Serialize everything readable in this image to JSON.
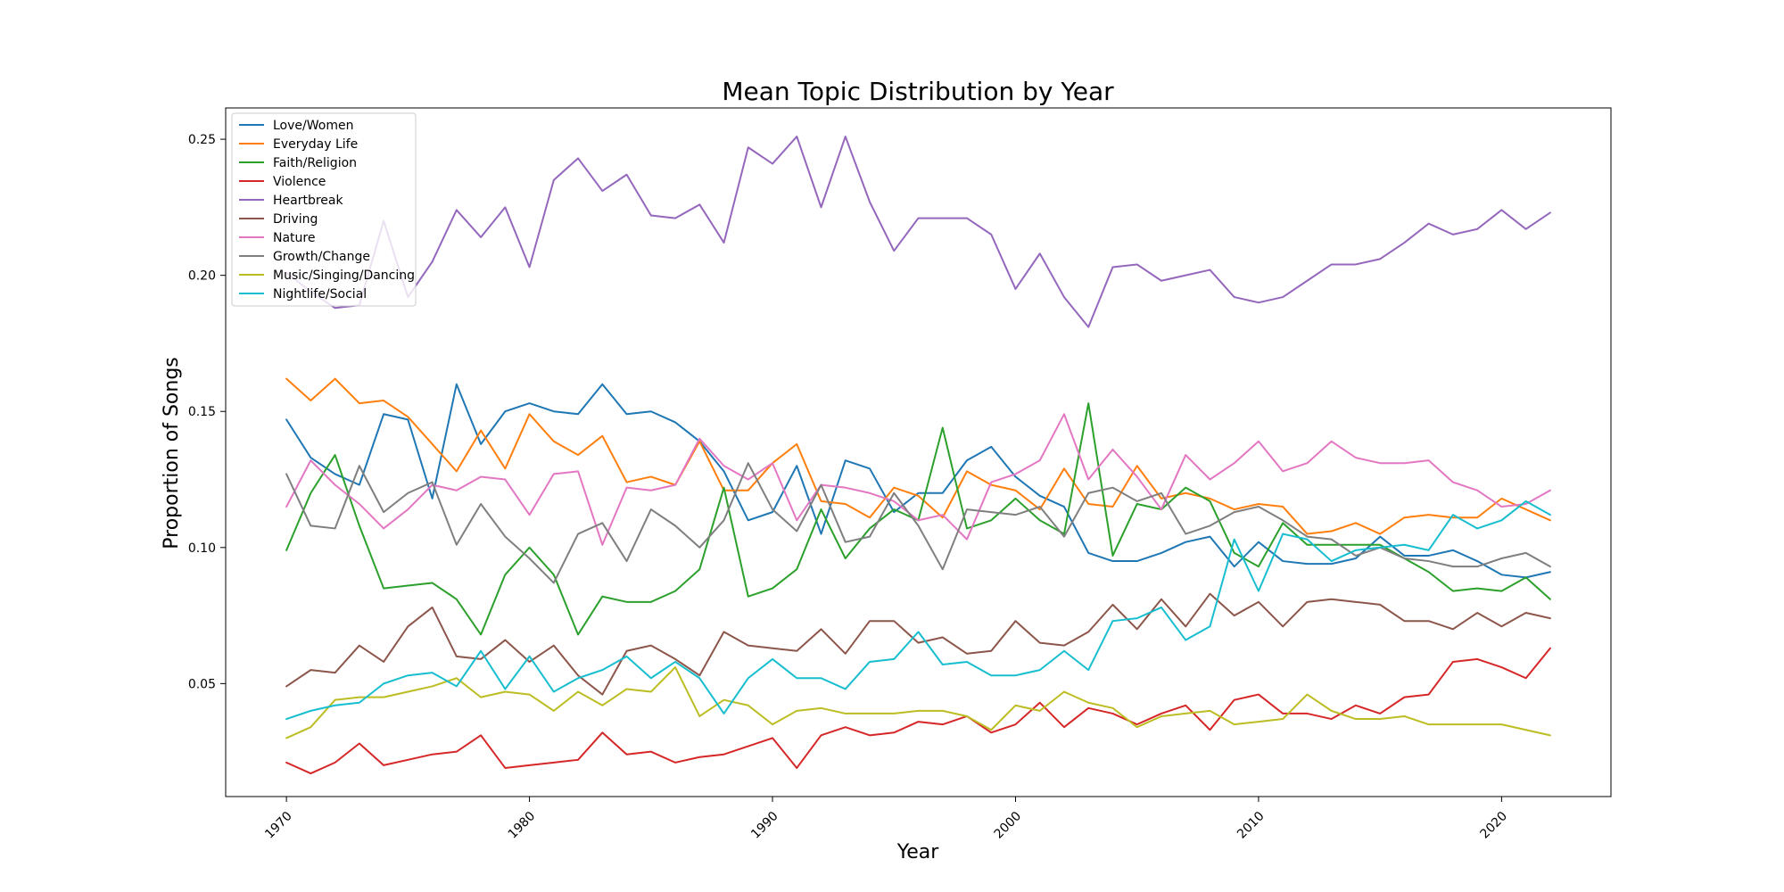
{
  "chart_data": {
    "type": "line",
    "title": "Mean Topic Distribution by Year",
    "xlabel": "Year",
    "ylabel": "Proportion of Songs",
    "xlim": [
      1967.5,
      2024.5
    ],
    "ylim": [
      0.0085,
      0.2615
    ],
    "xticks": [
      1970,
      1980,
      1990,
      2000,
      2010,
      2020
    ],
    "yticks": [
      0.05,
      0.1,
      0.15,
      0.2,
      0.25
    ],
    "ytick_labels": [
      "0.05",
      "0.10",
      "0.15",
      "0.20",
      "0.25"
    ],
    "grid": false,
    "legend_position": "top-left",
    "x": [
      1970,
      1971,
      1972,
      1973,
      1974,
      1975,
      1976,
      1977,
      1978,
      1979,
      1980,
      1981,
      1982,
      1983,
      1984,
      1985,
      1986,
      1987,
      1988,
      1989,
      1990,
      1991,
      1992,
      1993,
      1994,
      1995,
      1996,
      1997,
      1998,
      1999,
      2000,
      2001,
      2002,
      2003,
      2004,
      2005,
      2006,
      2007,
      2008,
      2009,
      2010,
      2011,
      2012,
      2013,
      2014,
      2015,
      2016,
      2017,
      2018,
      2019,
      2020,
      2021,
      2022
    ],
    "series": [
      {
        "name": "Love/Women",
        "color": "#1f77b4",
        "values": [
          0.147,
          0.133,
          0.127,
          0.123,
          0.149,
          0.147,
          0.118,
          0.16,
          0.138,
          0.15,
          0.153,
          0.15,
          0.149,
          0.16,
          0.149,
          0.15,
          0.146,
          0.139,
          0.128,
          0.11,
          0.113,
          0.13,
          0.105,
          0.132,
          0.129,
          0.113,
          0.12,
          0.12,
          0.132,
          0.137,
          0.126,
          0.119,
          0.115,
          0.098,
          0.095,
          0.095,
          0.098,
          0.102,
          0.104,
          0.093,
          0.102,
          0.095,
          0.094,
          0.094,
          0.096,
          0.104,
          0.097,
          0.097,
          0.099,
          0.095,
          0.09,
          0.089,
          0.091
        ]
      },
      {
        "name": "Everyday Life",
        "color": "#ff7f0e",
        "values": [
          0.162,
          0.154,
          0.162,
          0.153,
          0.154,
          0.148,
          0.138,
          0.128,
          0.143,
          0.129,
          0.149,
          0.139,
          0.134,
          0.141,
          0.124,
          0.126,
          0.123,
          0.139,
          0.121,
          0.121,
          0.131,
          0.138,
          0.117,
          0.116,
          0.111,
          0.122,
          0.119,
          0.111,
          0.128,
          0.123,
          0.121,
          0.114,
          0.129,
          0.116,
          0.115,
          0.13,
          0.118,
          0.12,
          0.118,
          0.114,
          0.116,
          0.115,
          0.105,
          0.106,
          0.109,
          0.105,
          0.111,
          0.112,
          0.111,
          0.111,
          0.118,
          0.114,
          0.11
        ]
      },
      {
        "name": "Faith/Religion",
        "color": "#2ca02c",
        "values": [
          0.099,
          0.12,
          0.134,
          0.108,
          0.085,
          0.086,
          0.087,
          0.081,
          0.068,
          0.09,
          0.1,
          0.09,
          0.068,
          0.082,
          0.08,
          0.08,
          0.084,
          0.092,
          0.122,
          0.082,
          0.085,
          0.092,
          0.114,
          0.096,
          0.107,
          0.114,
          0.11,
          0.144,
          0.107,
          0.11,
          0.118,
          0.11,
          0.105,
          0.153,
          0.097,
          0.116,
          0.114,
          0.122,
          0.117,
          0.098,
          0.093,
          0.109,
          0.101,
          0.101,
          0.101,
          0.101,
          0.096,
          0.091,
          0.084,
          0.085,
          0.084,
          0.089,
          0.081
        ]
      },
      {
        "name": "Violence",
        "color": "#d62728",
        "values": [
          0.021,
          0.017,
          0.021,
          0.028,
          0.02,
          0.022,
          0.024,
          0.025,
          0.031,
          0.019,
          0.02,
          0.021,
          0.022,
          0.032,
          0.024,
          0.025,
          0.021,
          0.023,
          0.024,
          0.027,
          0.03,
          0.019,
          0.031,
          0.034,
          0.031,
          0.032,
          0.036,
          0.035,
          0.038,
          0.032,
          0.035,
          0.043,
          0.034,
          0.041,
          0.039,
          0.035,
          0.039,
          0.042,
          0.033,
          0.044,
          0.046,
          0.039,
          0.039,
          0.037,
          0.042,
          0.039,
          0.045,
          0.046,
          0.058,
          0.059,
          0.056,
          0.052,
          0.063
        ]
      },
      {
        "name": "Heartbreak",
        "color": "#9467bd",
        "values": [
          0.201,
          0.194,
          0.188,
          0.189,
          0.22,
          0.192,
          0.205,
          0.224,
          0.214,
          0.225,
          0.203,
          0.235,
          0.243,
          0.231,
          0.237,
          0.222,
          0.221,
          0.226,
          0.212,
          0.247,
          0.241,
          0.251,
          0.225,
          0.251,
          0.227,
          0.209,
          0.221,
          0.221,
          0.221,
          0.215,
          0.195,
          0.208,
          0.192,
          0.181,
          0.203,
          0.204,
          0.198,
          0.2,
          0.202,
          0.192,
          0.19,
          0.192,
          0.198,
          0.204,
          0.204,
          0.206,
          0.212,
          0.219,
          0.215,
          0.217,
          0.224,
          0.217,
          0.223
        ]
      },
      {
        "name": "Driving",
        "color": "#8c564b",
        "values": [
          0.049,
          0.055,
          0.054,
          0.064,
          0.058,
          0.071,
          0.078,
          0.06,
          0.059,
          0.066,
          0.058,
          0.064,
          0.053,
          0.046,
          0.062,
          0.064,
          0.059,
          0.053,
          0.069,
          0.064,
          0.063,
          0.062,
          0.07,
          0.061,
          0.073,
          0.073,
          0.065,
          0.067,
          0.061,
          0.062,
          0.073,
          0.065,
          0.064,
          0.069,
          0.079,
          0.07,
          0.081,
          0.071,
          0.083,
          0.075,
          0.08,
          0.071,
          0.08,
          0.081,
          0.08,
          0.079,
          0.073,
          0.073,
          0.07,
          0.076,
          0.071,
          0.076,
          0.074
        ]
      },
      {
        "name": "Nature",
        "color": "#e377c2",
        "values": [
          0.115,
          0.132,
          0.123,
          0.116,
          0.107,
          0.114,
          0.123,
          0.121,
          0.126,
          0.125,
          0.112,
          0.127,
          0.128,
          0.101,
          0.122,
          0.121,
          0.123,
          0.14,
          0.13,
          0.125,
          0.131,
          0.11,
          0.123,
          0.122,
          0.12,
          0.117,
          0.11,
          0.112,
          0.103,
          0.124,
          0.127,
          0.132,
          0.149,
          0.125,
          0.136,
          0.126,
          0.114,
          0.134,
          0.125,
          0.131,
          0.139,
          0.128,
          0.131,
          0.139,
          0.133,
          0.131,
          0.131,
          0.132,
          0.124,
          0.121,
          0.115,
          0.116,
          0.121
        ]
      },
      {
        "name": "Growth/Change",
        "color": "#7f7f7f",
        "values": [
          0.127,
          0.108,
          0.107,
          0.13,
          0.113,
          0.12,
          0.124,
          0.101,
          0.116,
          0.104,
          0.096,
          0.087,
          0.105,
          0.109,
          0.095,
          0.114,
          0.108,
          0.1,
          0.11,
          0.131,
          0.114,
          0.106,
          0.123,
          0.102,
          0.104,
          0.12,
          0.108,
          0.092,
          0.114,
          0.113,
          0.112,
          0.115,
          0.104,
          0.12,
          0.122,
          0.117,
          0.12,
          0.105,
          0.108,
          0.113,
          0.115,
          0.11,
          0.104,
          0.103,
          0.097,
          0.1,
          0.096,
          0.095,
          0.093,
          0.093,
          0.096,
          0.098,
          0.093
        ]
      },
      {
        "name": "Music/Singing/Dancing",
        "color": "#bcbd22",
        "values": [
          0.03,
          0.034,
          0.044,
          0.045,
          0.045,
          0.047,
          0.049,
          0.052,
          0.045,
          0.047,
          0.046,
          0.04,
          0.047,
          0.042,
          0.048,
          0.047,
          0.056,
          0.038,
          0.044,
          0.042,
          0.035,
          0.04,
          0.041,
          0.039,
          0.039,
          0.039,
          0.04,
          0.04,
          0.038,
          0.033,
          0.042,
          0.04,
          0.047,
          0.043,
          0.041,
          0.034,
          0.038,
          0.039,
          0.04,
          0.035,
          0.036,
          0.037,
          0.046,
          0.04,
          0.037,
          0.037,
          0.038,
          0.035,
          0.035,
          0.035,
          0.035,
          0.033,
          0.031
        ]
      },
      {
        "name": "Nightlife/Social",
        "color": "#17becf",
        "values": [
          0.037,
          0.04,
          0.042,
          0.043,
          0.05,
          0.053,
          0.054,
          0.049,
          0.062,
          0.048,
          0.06,
          0.047,
          0.052,
          0.055,
          0.06,
          0.052,
          0.058,
          0.052,
          0.039,
          0.052,
          0.059,
          0.052,
          0.052,
          0.048,
          0.058,
          0.059,
          0.069,
          0.057,
          0.058,
          0.053,
          0.053,
          0.055,
          0.062,
          0.055,
          0.073,
          0.074,
          0.078,
          0.066,
          0.071,
          0.103,
          0.084,
          0.105,
          0.103,
          0.095,
          0.099,
          0.1,
          0.101,
          0.099,
          0.112,
          0.107,
          0.11,
          0.117,
          0.112
        ]
      }
    ]
  }
}
